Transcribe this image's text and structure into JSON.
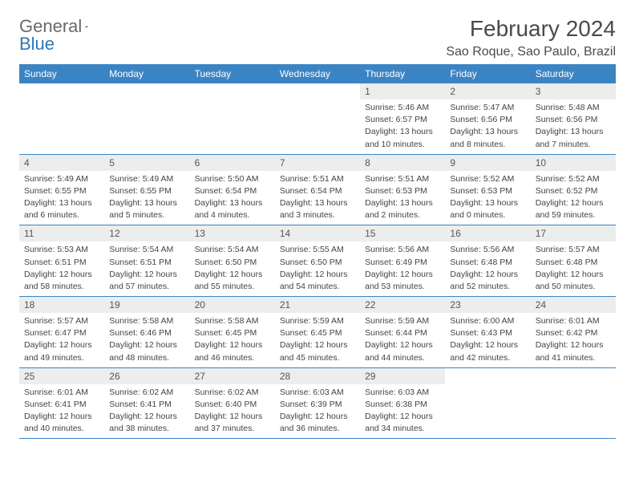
{
  "logo": {
    "part1": "General",
    "part2": "Blue",
    "brand_color": "#2f79b9",
    "text_color": "#6a6a6a"
  },
  "title": "February 2024",
  "location": "Sao Roque, Sao Paulo, Brazil",
  "header_bg": "#3b84c4",
  "daynum_bg": "#eceded",
  "border_color": "#3b84c4",
  "weekdays": [
    "Sunday",
    "Monday",
    "Tuesday",
    "Wednesday",
    "Thursday",
    "Friday",
    "Saturday"
  ],
  "weeks": [
    [
      null,
      null,
      null,
      null,
      {
        "n": "1",
        "sunrise": "Sunrise: 5:46 AM",
        "sunset": "Sunset: 6:57 PM",
        "d1": "Daylight: 13 hours",
        "d2": "and 10 minutes."
      },
      {
        "n": "2",
        "sunrise": "Sunrise: 5:47 AM",
        "sunset": "Sunset: 6:56 PM",
        "d1": "Daylight: 13 hours",
        "d2": "and 8 minutes."
      },
      {
        "n": "3",
        "sunrise": "Sunrise: 5:48 AM",
        "sunset": "Sunset: 6:56 PM",
        "d1": "Daylight: 13 hours",
        "d2": "and 7 minutes."
      }
    ],
    [
      {
        "n": "4",
        "sunrise": "Sunrise: 5:49 AM",
        "sunset": "Sunset: 6:55 PM",
        "d1": "Daylight: 13 hours",
        "d2": "and 6 minutes."
      },
      {
        "n": "5",
        "sunrise": "Sunrise: 5:49 AM",
        "sunset": "Sunset: 6:55 PM",
        "d1": "Daylight: 13 hours",
        "d2": "and 5 minutes."
      },
      {
        "n": "6",
        "sunrise": "Sunrise: 5:50 AM",
        "sunset": "Sunset: 6:54 PM",
        "d1": "Daylight: 13 hours",
        "d2": "and 4 minutes."
      },
      {
        "n": "7",
        "sunrise": "Sunrise: 5:51 AM",
        "sunset": "Sunset: 6:54 PM",
        "d1": "Daylight: 13 hours",
        "d2": "and 3 minutes."
      },
      {
        "n": "8",
        "sunrise": "Sunrise: 5:51 AM",
        "sunset": "Sunset: 6:53 PM",
        "d1": "Daylight: 13 hours",
        "d2": "and 2 minutes."
      },
      {
        "n": "9",
        "sunrise": "Sunrise: 5:52 AM",
        "sunset": "Sunset: 6:53 PM",
        "d1": "Daylight: 13 hours",
        "d2": "and 0 minutes."
      },
      {
        "n": "10",
        "sunrise": "Sunrise: 5:52 AM",
        "sunset": "Sunset: 6:52 PM",
        "d1": "Daylight: 12 hours",
        "d2": "and 59 minutes."
      }
    ],
    [
      {
        "n": "11",
        "sunrise": "Sunrise: 5:53 AM",
        "sunset": "Sunset: 6:51 PM",
        "d1": "Daylight: 12 hours",
        "d2": "and 58 minutes."
      },
      {
        "n": "12",
        "sunrise": "Sunrise: 5:54 AM",
        "sunset": "Sunset: 6:51 PM",
        "d1": "Daylight: 12 hours",
        "d2": "and 57 minutes."
      },
      {
        "n": "13",
        "sunrise": "Sunrise: 5:54 AM",
        "sunset": "Sunset: 6:50 PM",
        "d1": "Daylight: 12 hours",
        "d2": "and 55 minutes."
      },
      {
        "n": "14",
        "sunrise": "Sunrise: 5:55 AM",
        "sunset": "Sunset: 6:50 PM",
        "d1": "Daylight: 12 hours",
        "d2": "and 54 minutes."
      },
      {
        "n": "15",
        "sunrise": "Sunrise: 5:56 AM",
        "sunset": "Sunset: 6:49 PM",
        "d1": "Daylight: 12 hours",
        "d2": "and 53 minutes."
      },
      {
        "n": "16",
        "sunrise": "Sunrise: 5:56 AM",
        "sunset": "Sunset: 6:48 PM",
        "d1": "Daylight: 12 hours",
        "d2": "and 52 minutes."
      },
      {
        "n": "17",
        "sunrise": "Sunrise: 5:57 AM",
        "sunset": "Sunset: 6:48 PM",
        "d1": "Daylight: 12 hours",
        "d2": "and 50 minutes."
      }
    ],
    [
      {
        "n": "18",
        "sunrise": "Sunrise: 5:57 AM",
        "sunset": "Sunset: 6:47 PM",
        "d1": "Daylight: 12 hours",
        "d2": "and 49 minutes."
      },
      {
        "n": "19",
        "sunrise": "Sunrise: 5:58 AM",
        "sunset": "Sunset: 6:46 PM",
        "d1": "Daylight: 12 hours",
        "d2": "and 48 minutes."
      },
      {
        "n": "20",
        "sunrise": "Sunrise: 5:58 AM",
        "sunset": "Sunset: 6:45 PM",
        "d1": "Daylight: 12 hours",
        "d2": "and 46 minutes."
      },
      {
        "n": "21",
        "sunrise": "Sunrise: 5:59 AM",
        "sunset": "Sunset: 6:45 PM",
        "d1": "Daylight: 12 hours",
        "d2": "and 45 minutes."
      },
      {
        "n": "22",
        "sunrise": "Sunrise: 5:59 AM",
        "sunset": "Sunset: 6:44 PM",
        "d1": "Daylight: 12 hours",
        "d2": "and 44 minutes."
      },
      {
        "n": "23",
        "sunrise": "Sunrise: 6:00 AM",
        "sunset": "Sunset: 6:43 PM",
        "d1": "Daylight: 12 hours",
        "d2": "and 42 minutes."
      },
      {
        "n": "24",
        "sunrise": "Sunrise: 6:01 AM",
        "sunset": "Sunset: 6:42 PM",
        "d1": "Daylight: 12 hours",
        "d2": "and 41 minutes."
      }
    ],
    [
      {
        "n": "25",
        "sunrise": "Sunrise: 6:01 AM",
        "sunset": "Sunset: 6:41 PM",
        "d1": "Daylight: 12 hours",
        "d2": "and 40 minutes."
      },
      {
        "n": "26",
        "sunrise": "Sunrise: 6:02 AM",
        "sunset": "Sunset: 6:41 PM",
        "d1": "Daylight: 12 hours",
        "d2": "and 38 minutes."
      },
      {
        "n": "27",
        "sunrise": "Sunrise: 6:02 AM",
        "sunset": "Sunset: 6:40 PM",
        "d1": "Daylight: 12 hours",
        "d2": "and 37 minutes."
      },
      {
        "n": "28",
        "sunrise": "Sunrise: 6:03 AM",
        "sunset": "Sunset: 6:39 PM",
        "d1": "Daylight: 12 hours",
        "d2": "and 36 minutes."
      },
      {
        "n": "29",
        "sunrise": "Sunrise: 6:03 AM",
        "sunset": "Sunset: 6:38 PM",
        "d1": "Daylight: 12 hours",
        "d2": "and 34 minutes."
      },
      null,
      null
    ]
  ]
}
